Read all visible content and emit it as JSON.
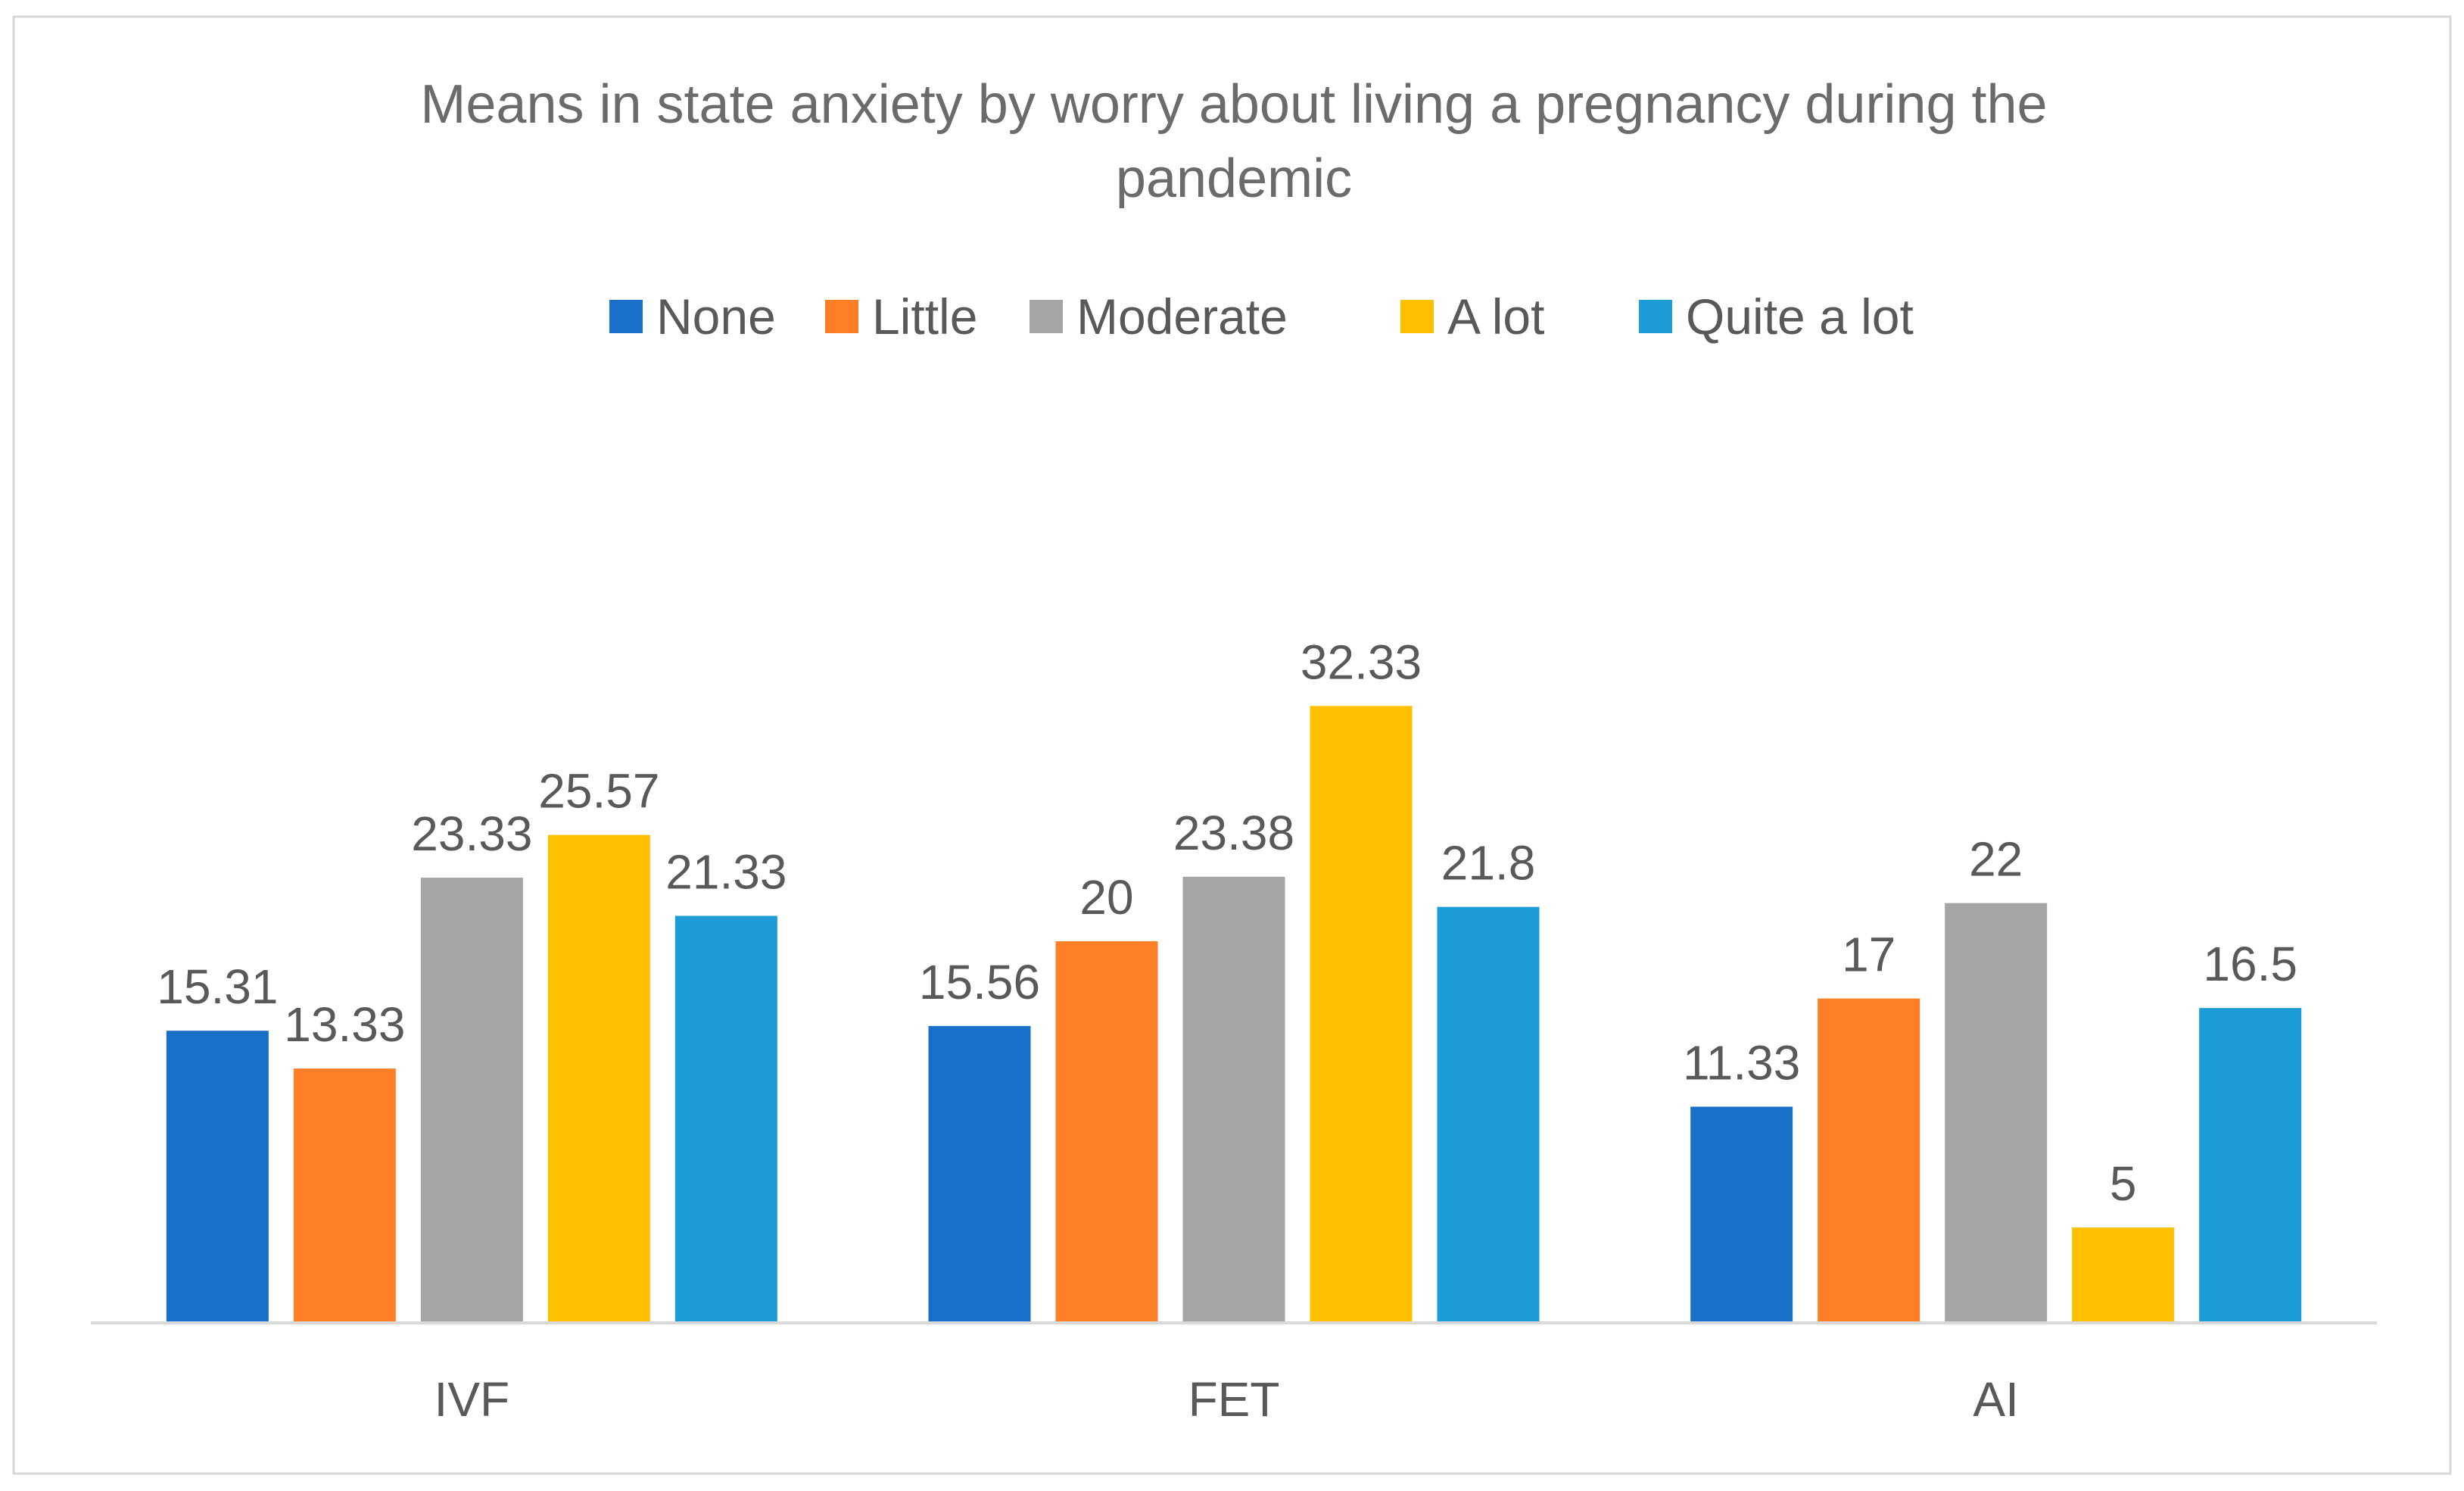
{
  "chart_data": {
    "type": "bar",
    "title": "Means in state anxiety by worry about living a pregnancy during the pandemic",
    "title_lines": [
      "Means in state anxiety by worry about living a pregnancy during the",
      "pandemic"
    ],
    "categories": [
      "IVF",
      "FET",
      "AI"
    ],
    "series": [
      {
        "name": "None",
        "color": "#1870C8",
        "values": [
          15.31,
          15.56,
          11.33
        ],
        "labels": [
          "15.31",
          "15.56",
          "11.33"
        ]
      },
      {
        "name": "Little",
        "color": "#FF7F27",
        "values": [
          13.33,
          20,
          17
        ],
        "labels": [
          "13.33",
          "20",
          "17"
        ]
      },
      {
        "name": "Moderate",
        "color": "#A5A5A5",
        "values": [
          23.33,
          23.38,
          22
        ],
        "labels": [
          "23.33",
          "23.38",
          "22"
        ]
      },
      {
        "name": "A lot",
        "color": "#FFC000",
        "values": [
          25.57,
          32.33,
          5
        ],
        "labels": [
          "25.57",
          "32.33",
          "5"
        ]
      },
      {
        "name": "Quite a lot",
        "color": "#1E9CD8",
        "values": [
          21.33,
          21.8,
          16.5
        ],
        "labels": [
          "21.33",
          "21.8",
          "16.5"
        ]
      }
    ],
    "legend": "top",
    "xlabel": "",
    "ylabel": "",
    "ylim": [
      0,
      35
    ],
    "grid": false
  }
}
